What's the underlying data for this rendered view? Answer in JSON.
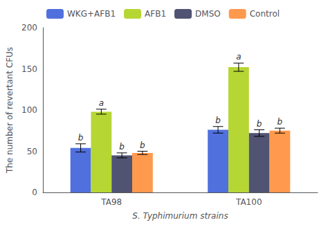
{
  "chart_data": {
    "type": "bar",
    "categories": [
      "TA98",
      "TA100"
    ],
    "xlabel": "S. Typhimurium strains",
    "ylabel": "The number of revertant CFUs",
    "ylim": [
      0,
      200
    ],
    "yticks": [
      0,
      50,
      100,
      150,
      200
    ],
    "grid": false,
    "legend": "upper left",
    "series": [
      {
        "name": "WKG+AFB1",
        "values": [
          54,
          76
        ],
        "errors": [
          5,
          4
        ],
        "letters": [
          "b",
          "b"
        ]
      },
      {
        "name": "AFB1",
        "values": [
          98,
          152
        ],
        "errors": [
          3,
          5
        ],
        "letters": [
          "a",
          "a"
        ]
      },
      {
        "name": "DMSO",
        "values": [
          45,
          72
        ],
        "errors": [
          3,
          4
        ],
        "letters": [
          "b",
          "b"
        ]
      },
      {
        "name": "Control",
        "values": [
          48,
          75
        ],
        "errors": [
          2,
          3
        ],
        "letters": [
          "b",
          "b"
        ]
      }
    ]
  }
}
